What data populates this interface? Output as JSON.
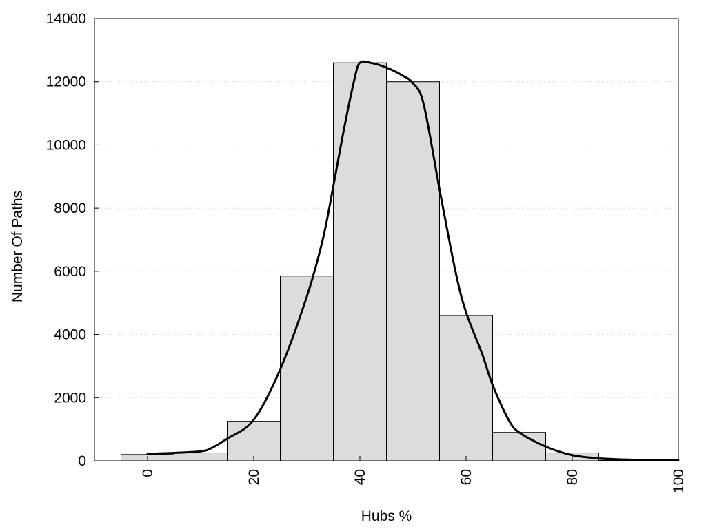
{
  "chart_data": {
    "type": "bar",
    "xlabel": "Hubs %",
    "ylabel": "Number Of Paths",
    "xlim": [
      -10,
      100
    ],
    "ylim": [
      0,
      14000
    ],
    "x_ticks": [
      0,
      20,
      40,
      60,
      80,
      100
    ],
    "y_ticks": [
      0,
      2000,
      4000,
      6000,
      8000,
      10000,
      12000,
      14000
    ],
    "grid": "horizontal dotted",
    "bar_width": 10,
    "bars": {
      "centers": [
        0,
        10,
        20,
        30,
        40,
        50,
        60,
        70,
        80,
        90
      ],
      "values": [
        200,
        250,
        1250,
        5850,
        12600,
        12000,
        4600,
        900,
        250,
        20
      ]
    },
    "curve": {
      "x": [
        0,
        5,
        10,
        12,
        15,
        20,
        25,
        30,
        33,
        35,
        37,
        39,
        40,
        42,
        45,
        48,
        50,
        52,
        55,
        58,
        60,
        63,
        65,
        68,
        70,
        75,
        80,
        85,
        90,
        95,
        100
      ],
      "y": [
        220,
        250,
        300,
        400,
        700,
        1300,
        2900,
        5200,
        7000,
        8700,
        10500,
        12100,
        12600,
        12600,
        12450,
        12200,
        11950,
        11300,
        8600,
        6000,
        4700,
        3400,
        2400,
        1300,
        900,
        450,
        180,
        80,
        40,
        20,
        10
      ]
    },
    "colors": {
      "bar_fill": "#dcdcdc",
      "bar_stroke": "#000000",
      "curve": "#000000",
      "grid": "#c8c8c8"
    }
  }
}
